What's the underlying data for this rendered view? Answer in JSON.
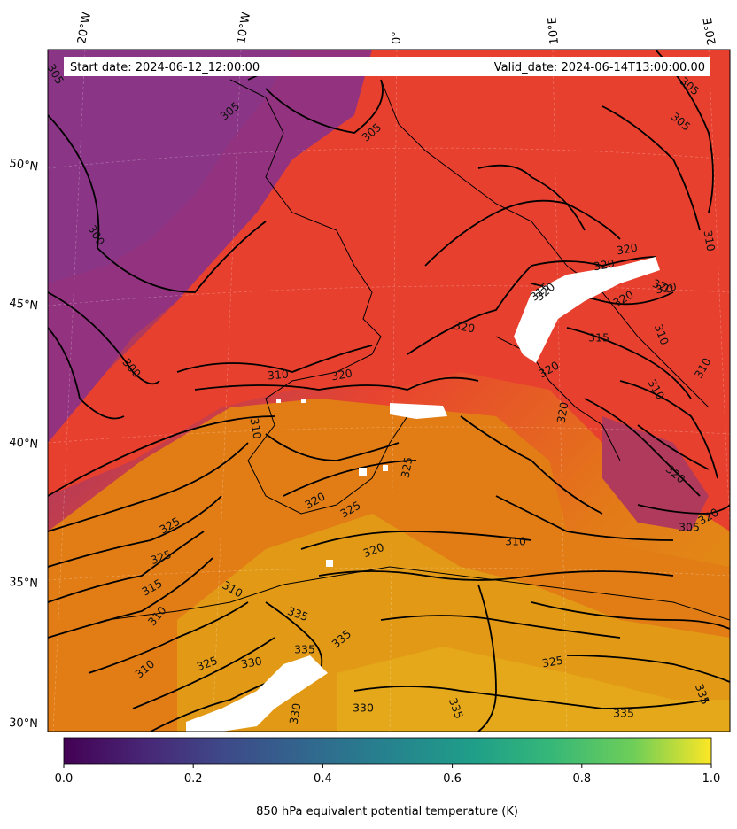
{
  "header": {
    "start_date": "Start date: 2024-06-12_12:00:00",
    "valid_date": "Valid_date: 2024-06-14T13:00:00.00"
  },
  "map": {
    "lon_labels": [
      "20°W",
      "10°W",
      "0°",
      "10°E",
      "20°E"
    ],
    "lat_labels": [
      "50°N",
      "45°N",
      "40°N",
      "35°N",
      "30°N"
    ],
    "contour_labels": [
      "305",
      "305",
      "305",
      "305",
      "305",
      "300",
      "300",
      "310",
      "320",
      "320",
      "320",
      "315",
      "320",
      "320",
      "320",
      "320",
      "320",
      "310",
      "310",
      "310",
      "315",
      "310",
      "320",
      "320",
      "305",
      "310",
      "310",
      "320",
      "325",
      "325",
      "325",
      "325",
      "315",
      "310",
      "310",
      "310",
      "325",
      "330",
      "335",
      "335",
      "335",
      "330",
      "330",
      "335",
      "320",
      "325",
      "335",
      "335",
      "320",
      "320"
    ]
  },
  "colorbar": {
    "ticks": [
      "0.0",
      "0.2",
      "0.4",
      "0.6",
      "0.8",
      "1.0"
    ],
    "label": "850 hPa equivalent potential temperature (K)"
  },
  "colors": {
    "cold": "#8e3282",
    "mid": "#e8402e",
    "warm": "#e28a12",
    "hot": "#e3a81a"
  }
}
